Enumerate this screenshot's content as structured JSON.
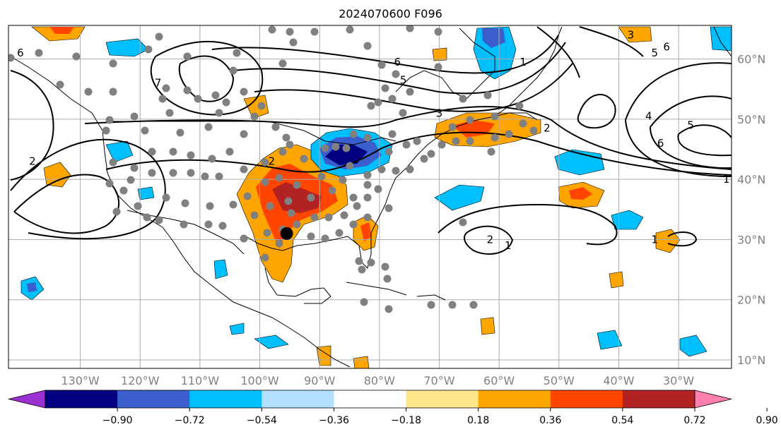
{
  "title": "2024070600 F096",
  "map": {
    "projection": "plate-carree",
    "lon_range": [
      -142,
      -20
    ],
    "lat_range": [
      8,
      65
    ],
    "lon_ticks": [
      {
        "value": -130,
        "label": "130°W"
      },
      {
        "value": -120,
        "label": "120°W"
      },
      {
        "value": -110,
        "label": "110°W"
      },
      {
        "value": -100,
        "label": "100°W"
      },
      {
        "value": -90,
        "label": "90°W"
      },
      {
        "value": -80,
        "label": "80°W"
      },
      {
        "value": -70,
        "label": "70°W"
      },
      {
        "value": -60,
        "label": "60°W"
      },
      {
        "value": -50,
        "label": "50°W"
      },
      {
        "value": -40,
        "label": "40°W"
      },
      {
        "value": -30,
        "label": "30°W"
      }
    ],
    "lat_ticks": [
      {
        "value": 60,
        "label": "60°N"
      },
      {
        "value": 50,
        "label": "50°N"
      },
      {
        "value": 40,
        "label": "40°N"
      },
      {
        "value": 30,
        "label": "30°N"
      },
      {
        "value": 20,
        "label": "20°N"
      },
      {
        "value": 10,
        "label": "10°N"
      }
    ],
    "grid": true,
    "marker": {
      "lon": -95.5,
      "lat": 31.0,
      "color": "#000000"
    },
    "station_color": "#808080",
    "contour_labels": [
      {
        "text": "1",
        "lon": -56,
        "lat": 59.5
      },
      {
        "text": "2",
        "lon": -52,
        "lat": 48.5
      },
      {
        "text": "3",
        "lon": -70,
        "lat": 51
      },
      {
        "text": "5",
        "lon": -76,
        "lat": 56.5
      },
      {
        "text": "6",
        "lon": -77,
        "lat": 59.5
      },
      {
        "text": "7",
        "lon": -117,
        "lat": 56
      },
      {
        "text": "2",
        "lon": -138,
        "lat": 43
      },
      {
        "text": "2",
        "lon": -98,
        "lat": 43
      },
      {
        "text": "3",
        "lon": -38,
        "lat": 64
      },
      {
        "text": "5",
        "lon": -34,
        "lat": 61
      },
      {
        "text": "6",
        "lon": -32,
        "lat": 62
      },
      {
        "text": "4",
        "lon": -35,
        "lat": 50.5
      },
      {
        "text": "5",
        "lon": -28,
        "lat": 49
      },
      {
        "text": "6",
        "lon": -33,
        "lat": 46
      },
      {
        "text": "1",
        "lon": -22,
        "lat": 40
      },
      {
        "text": "2",
        "lon": -61.5,
        "lat": 30
      },
      {
        "text": "1",
        "lon": -58.5,
        "lat": 29
      },
      {
        "text": "1",
        "lon": -34,
        "lat": 30
      },
      {
        "text": "6",
        "lon": -140,
        "lat": 61
      }
    ]
  },
  "colorbar": {
    "colors": [
      "#9b30d0",
      "#000080",
      "#3a5fcd",
      "#00bfff",
      "#b2dfff",
      "#ffffff",
      "#ffe68a",
      "#ffa500",
      "#ff4500",
      "#b22222",
      "#ff80b0"
    ],
    "ticks": [
      "−0.90",
      "−0.72",
      "−0.54",
      "−0.36",
      "−0.18",
      "0.18",
      "0.36",
      "0.54",
      "0.72",
      "0.90"
    ]
  }
}
